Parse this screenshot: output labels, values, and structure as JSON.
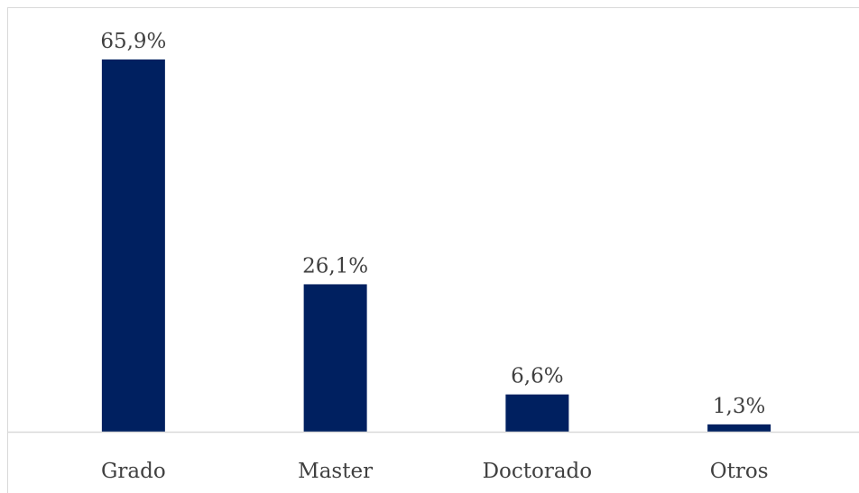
{
  "chart_data": {
    "type": "bar",
    "categories": [
      "Grado",
      "Master",
      "Doctorado",
      "Otros"
    ],
    "values": [
      65.9,
      26.1,
      6.6,
      1.3
    ],
    "data_labels": [
      "65,9%",
      "26,1%",
      "6,6%",
      "1,3%"
    ],
    "unit": "%",
    "ylim": [
      0,
      65.9
    ],
    "grid": false,
    "legend": "none",
    "bar_color": "#002060",
    "axis_color": "#d9d9d9",
    "label_color": "#404040"
  }
}
